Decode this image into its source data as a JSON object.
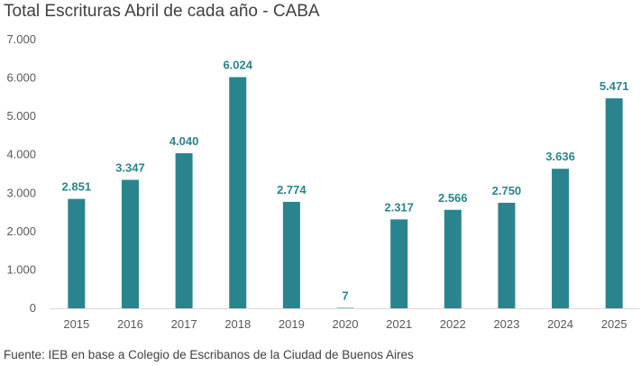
{
  "title": "Total Escrituras Abril de cada año - CABA",
  "source": "Fuente: IEB en base a Colegio de Escribanos de la Ciudad de Buenos Aires",
  "colors": {
    "bar": "#2a848e",
    "label": "#2a848e",
    "axis": "#d9d9d9"
  },
  "chart_data": {
    "type": "bar",
    "title": "Total Escrituras Abril de cada año - CABA",
    "categories": [
      "2015",
      "2016",
      "2017",
      "2018",
      "2019",
      "2020",
      "2021",
      "2022",
      "2023",
      "2024",
      "2025"
    ],
    "values": [
      2851,
      3347,
      4040,
      6024,
      2774,
      7,
      2317,
      2566,
      2750,
      3636,
      5471
    ],
    "value_labels": [
      "2.851",
      "3.347",
      "4.040",
      "6.024",
      "2.774",
      "7",
      "2.317",
      "2.566",
      "2.750",
      "3.636",
      "5.471"
    ],
    "yticks": [
      0,
      1000,
      2000,
      3000,
      4000,
      5000,
      6000,
      7000
    ],
    "ytick_labels": [
      "0",
      "1.000",
      "2.000",
      "3.000",
      "4.000",
      "5.000",
      "6.000",
      "7.000"
    ],
    "ylim": [
      0,
      7000
    ],
    "xlabel": "",
    "ylabel": "",
    "grid": false,
    "legend": "none"
  }
}
